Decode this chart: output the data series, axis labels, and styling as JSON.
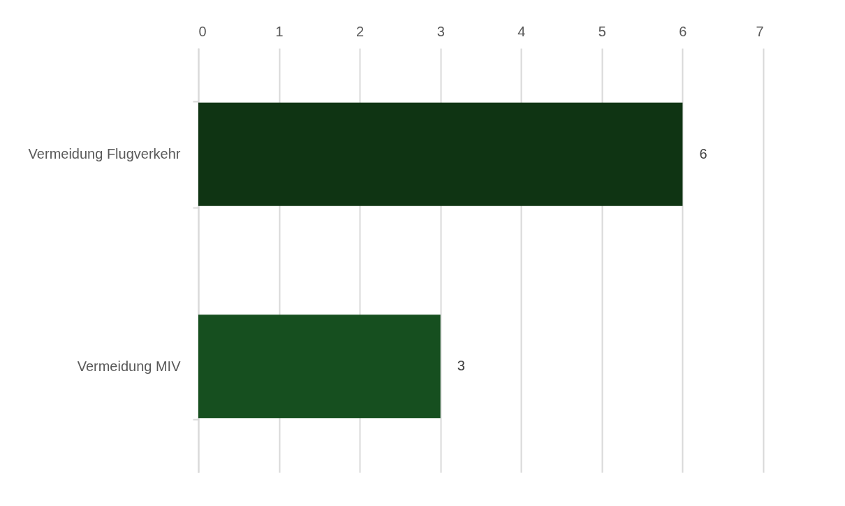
{
  "chart_data": {
    "type": "bar",
    "orientation": "horizontal",
    "categories": [
      "Vermeidung Flugverkehr",
      "Vermeidung MIV"
    ],
    "values": [
      6,
      3
    ],
    "colors": [
      "#0f3413",
      "#164f1f"
    ],
    "xlim": [
      0,
      7
    ],
    "xticks": [
      0,
      1,
      2,
      3,
      4,
      5,
      6,
      7
    ],
    "grid": "x",
    "data_labels": true
  }
}
